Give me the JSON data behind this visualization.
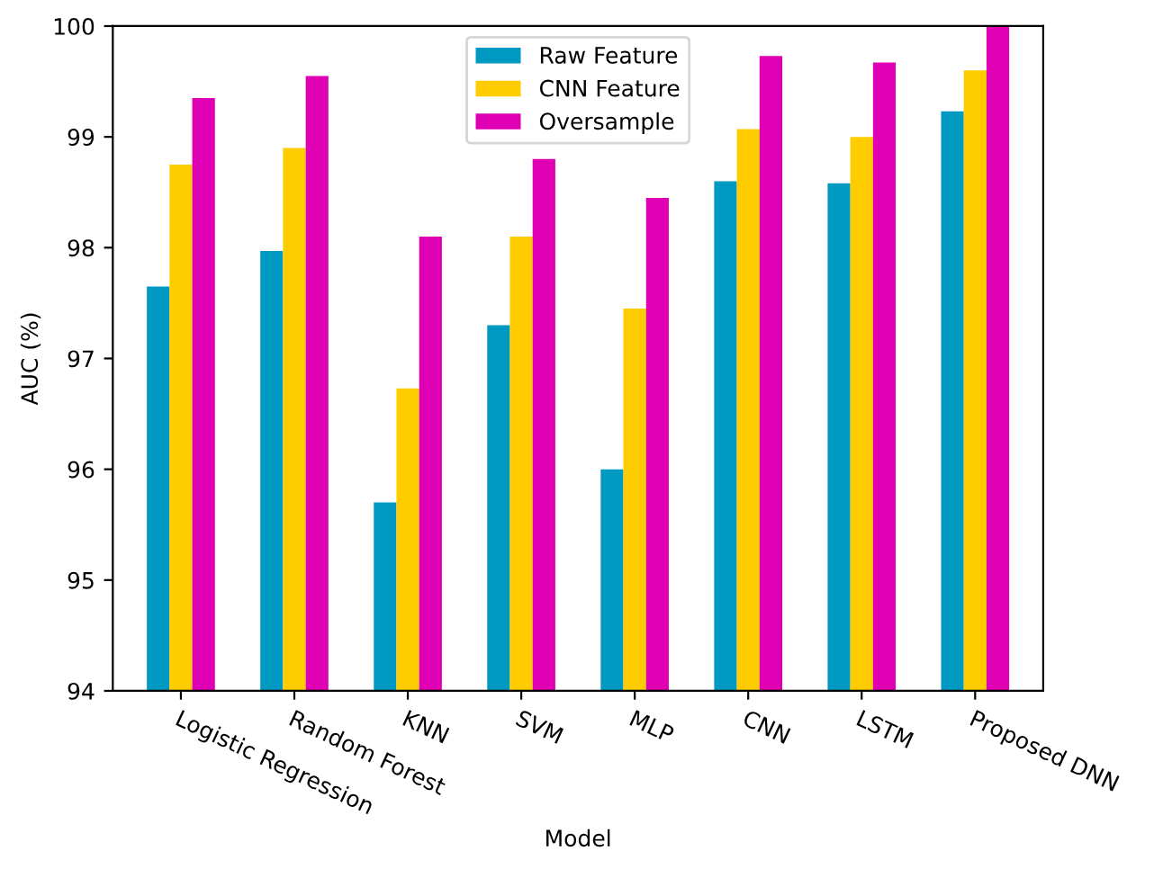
{
  "chart_data": {
    "type": "bar",
    "xlabel": "Model",
    "ylabel": "AUC (%)",
    "categories": [
      "Logistic Regression",
      "Random Forest",
      "KNN",
      "SVM",
      "MLP",
      "CNN",
      "LSTM",
      "Proposed DNN"
    ],
    "series": [
      {
        "name": "Raw Feature",
        "color": "#0099c2",
        "values": [
          97.65,
          97.97,
          95.7,
          97.3,
          96.0,
          98.6,
          98.58,
          99.23
        ]
      },
      {
        "name": "CNN Feature",
        "color": "#ffcc00",
        "values": [
          98.75,
          98.9,
          96.73,
          98.1,
          97.45,
          99.07,
          99.0,
          99.6
        ]
      },
      {
        "name": "Oversample",
        "color": "#e000b4",
        "values": [
          99.35,
          99.55,
          98.1,
          98.8,
          98.45,
          99.73,
          99.67,
          100.0
        ]
      }
    ],
    "ylim": [
      94,
      100
    ],
    "yticks": [
      94,
      95,
      96,
      97,
      98,
      99,
      100
    ],
    "grid": false,
    "legend": "top center"
  }
}
